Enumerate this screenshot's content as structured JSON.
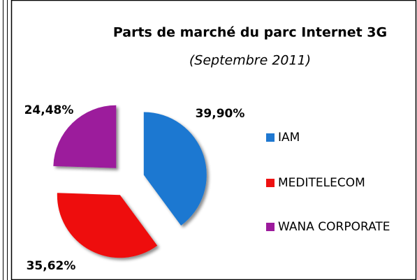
{
  "chart_data": {
    "type": "pie",
    "title": "Parts de marché du parc Internet 3G",
    "subtitle": "(Septembre 2011)",
    "categories": [
      "IAM",
      "MEDITELECOM",
      "WANA CORPORATE"
    ],
    "values": [
      39.9,
      35.62,
      24.48
    ],
    "value_labels": [
      "39,90%",
      "35,62%",
      "24,48%"
    ],
    "colors": [
      "#1f78d1",
      "#ee1111",
      "#9c1a9c"
    ],
    "legend": "right"
  }
}
